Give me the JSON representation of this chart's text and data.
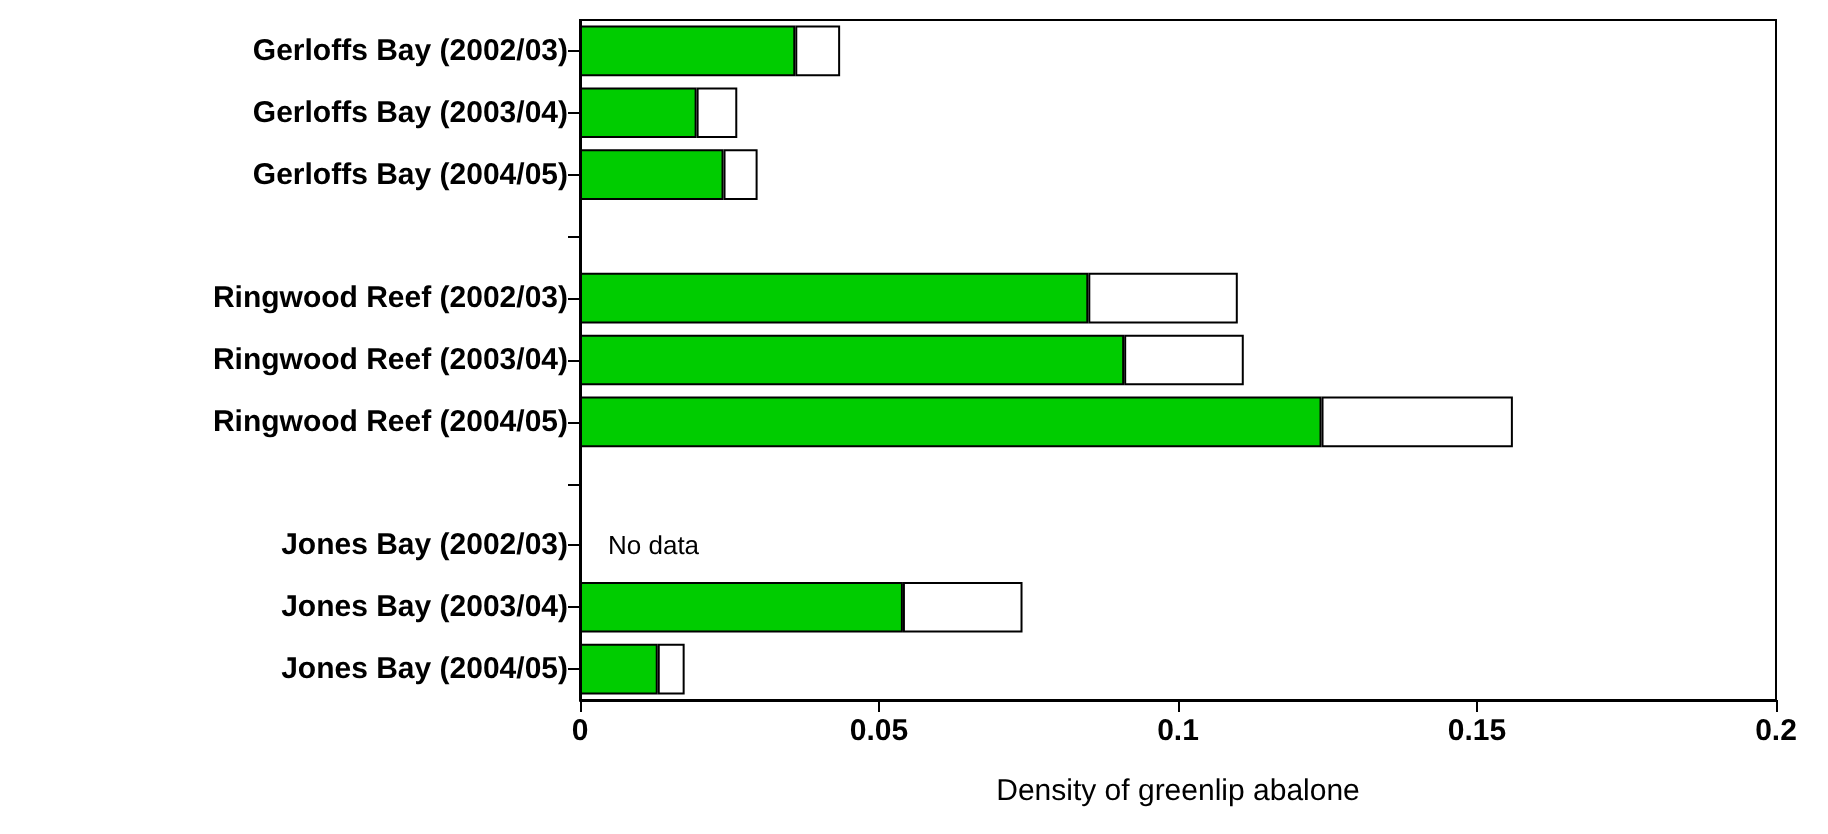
{
  "chart_data": {
    "type": "bar",
    "orientation": "horizontal",
    "stacked": true,
    "xlabel": "Density of greenlip abalone",
    "categories": [
      "Gerloffs Bay (2002/03)",
      "Gerloffs Bay (2003/04)",
      "Gerloffs Bay (2004/05)",
      null,
      "Ringwood Reef (2002/03)",
      "Ringwood Reef (2003/04)",
      "Ringwood Reef (2004/05)",
      null,
      "Jones Bay (2002/03)",
      "Jones Bay (2003/04)",
      "Jones Bay (2004/05)"
    ],
    "series": [
      {
        "color": "#00cc00",
        "values": [
          0.036,
          0.0195,
          0.024,
          null,
          0.085,
          0.091,
          0.124,
          null,
          null,
          0.054,
          0.013
        ]
      },
      {
        "color": "#ffffff",
        "values": [
          0.0075,
          0.0068,
          0.0057,
          null,
          0.025,
          0.02,
          0.032,
          null,
          null,
          0.02,
          0.0045
        ]
      }
    ],
    "xlim": [
      0,
      0.2
    ],
    "xticks": [
      0,
      0.05,
      0.1,
      0.15,
      0.2
    ],
    "annotations": [
      "No data"
    ],
    "grid": false
  }
}
